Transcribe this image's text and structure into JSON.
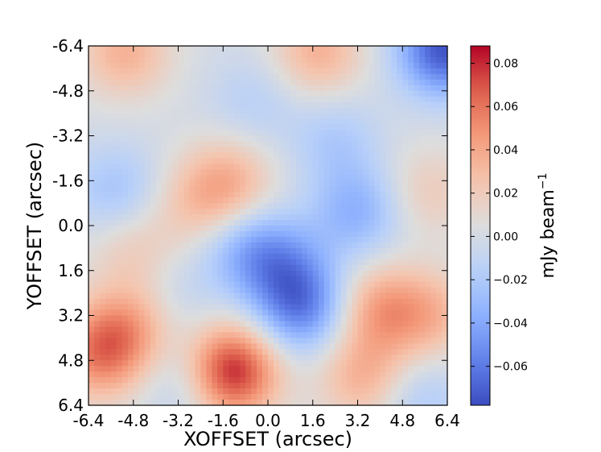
{
  "chart_data": {
    "type": "heatmap",
    "xlabel": "XOFFSET (arcsec)",
    "ylabel": "YOFFSET (arcsec)",
    "x_ticks": [
      "-6.4",
      "-4.8",
      "-3.2",
      "-1.6",
      "0.0",
      "1.6",
      "3.2",
      "4.8",
      "6.4"
    ],
    "y_ticks": [
      "-6.4",
      "-4.8",
      "-3.2",
      "-1.6",
      "0.0",
      "1.6",
      "3.2",
      "4.8",
      "6.4"
    ],
    "xlim": [
      -6.4,
      6.4
    ],
    "ylim": [
      -6.4,
      6.4
    ],
    "y_axis_inverted": true,
    "colormap": "coolwarm",
    "colorbar": {
      "label": "mJy beam",
      "label_superscript": "−1",
      "range": [
        -0.078,
        0.088
      ],
      "ticks": [
        0.08,
        0.06,
        0.04,
        0.02,
        0.0,
        -0.02,
        -0.04,
        -0.06
      ],
      "tick_labels": [
        "0.08",
        "0.06",
        "0.04",
        "0.02",
        "0.00",
        "−0.02",
        "−0.04",
        "−0.06"
      ]
    },
    "features": [
      {
        "x": -1.3,
        "y": 5.2,
        "value": 0.085
      },
      {
        "x": -6.0,
        "y": 4.6,
        "value": 0.05
      },
      {
        "x": -5.0,
        "y": 3.6,
        "value": 0.035
      },
      {
        "x": -1.4,
        "y": -1.5,
        "value": 0.035
      },
      {
        "x": -2.6,
        "y": -0.7,
        "value": 0.02
      },
      {
        "x": 4.0,
        "y": 3.0,
        "value": 0.04
      },
      {
        "x": 5.8,
        "y": 3.2,
        "value": 0.03
      },
      {
        "x": 3.4,
        "y": 5.4,
        "value": 0.035
      },
      {
        "x": -5.1,
        "y": -6.2,
        "value": 0.035
      },
      {
        "x": 1.8,
        "y": -6.2,
        "value": 0.035
      },
      {
        "x": 5.7,
        "y": -1.2,
        "value": 0.02
      },
      {
        "x": -4.8,
        "y": 0.8,
        "value": 0.02
      },
      {
        "x": 1.2,
        "y": 2.9,
        "value": -0.055
      },
      {
        "x": 0.5,
        "y": 1.4,
        "value": -0.035
      },
      {
        "x": -0.8,
        "y": 0.8,
        "value": -0.03
      },
      {
        "x": 3.2,
        "y": -0.5,
        "value": -0.035
      },
      {
        "x": 6.3,
        "y": -6.3,
        "value": -0.075
      },
      {
        "x": -5.4,
        "y": -1.2,
        "value": -0.025
      },
      {
        "x": -2.8,
        "y": 5.6,
        "value": -0.02
      },
      {
        "x": 2.4,
        "y": -3.0,
        "value": -0.02
      },
      {
        "x": -0.5,
        "y": -4.4,
        "value": -0.015
      },
      {
        "x": 5.4,
        "y": 6.2,
        "value": -0.02
      },
      {
        "x": -3.2,
        "y": 2.4,
        "value": -0.01
      }
    ]
  }
}
